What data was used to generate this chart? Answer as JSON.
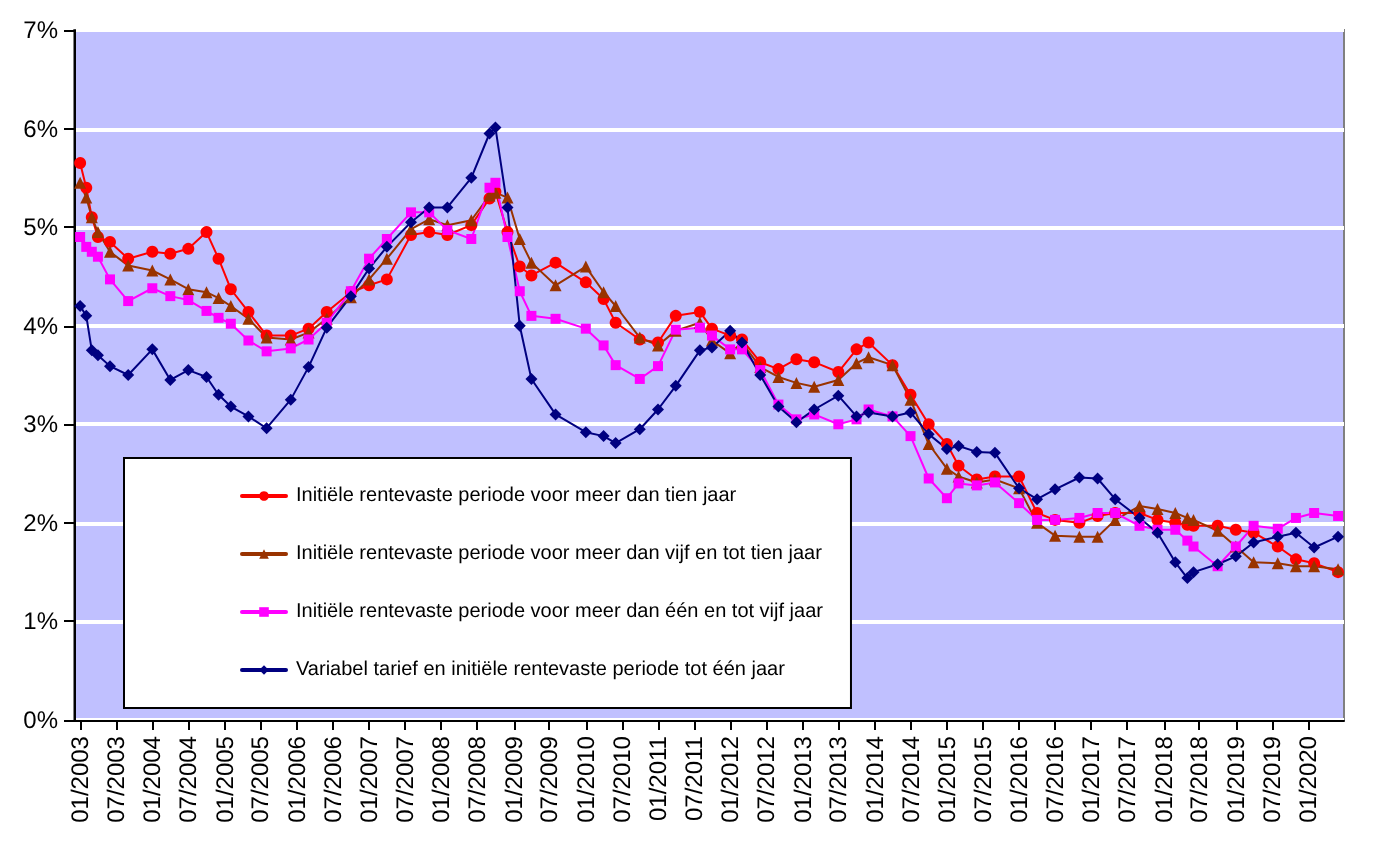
{
  "chart_data": {
    "type": "line",
    "x": [
      "2003-01",
      "2003-02",
      "2003-03",
      "2003-04",
      "2003-06",
      "2003-09",
      "2004-01",
      "2004-04",
      "2004-07",
      "2004-10",
      "2004-12",
      "2005-02",
      "2005-05",
      "2005-08",
      "2005-12",
      "2006-03",
      "2006-06",
      "2006-10",
      "2007-01",
      "2007-04",
      "2007-08",
      "2007-11",
      "2008-02",
      "2008-06",
      "2008-09",
      "2008-10",
      "2008-12",
      "2009-02",
      "2009-04",
      "2009-08",
      "2010-01",
      "2010-04",
      "2010-06",
      "2010-10",
      "2011-01",
      "2011-04",
      "2011-08",
      "2011-10",
      "2012-01",
      "2012-03",
      "2012-06",
      "2012-09",
      "2012-12",
      "2013-03",
      "2013-07",
      "2013-10",
      "2013-12",
      "2014-04",
      "2014-07",
      "2014-10",
      "2015-01",
      "2015-03",
      "2015-06",
      "2015-09",
      "2016-01",
      "2016-04",
      "2016-07",
      "2016-11",
      "2017-02",
      "2017-05",
      "2017-09",
      "2017-12",
      "2018-03",
      "2018-05",
      "2018-06",
      "2018-10",
      "2019-01",
      "2019-04",
      "2019-08",
      "2019-11",
      "2020-02",
      "2020-06"
    ],
    "series": [
      {
        "name": "Initiële rentevaste periode voor meer dan tien jaar",
        "color": "#ff0000",
        "marker": "circle",
        "values": [
          5.65,
          5.4,
          5.1,
          4.9,
          4.85,
          4.68,
          4.75,
          4.73,
          4.78,
          4.95,
          4.68,
          4.37,
          4.14,
          3.9,
          3.9,
          3.97,
          4.14,
          4.34,
          4.41,
          4.47,
          4.92,
          4.95,
          4.92,
          5.02,
          5.29,
          5.36,
          4.95,
          4.6,
          4.51,
          4.64,
          4.44,
          4.27,
          4.03,
          3.86,
          3.83,
          4.1,
          4.14,
          3.97,
          3.9,
          3.86,
          3.63,
          3.56,
          3.66,
          3.63,
          3.53,
          3.76,
          3.83,
          3.6,
          3.3,
          3.0,
          2.8,
          2.58,
          2.44,
          2.47,
          2.47,
          2.1,
          2.03,
          2.0,
          2.07,
          2.1,
          2.1,
          2.03,
          2.0,
          1.98,
          1.97,
          1.97,
          1.93,
          1.9,
          1.76,
          1.63,
          1.59,
          1.5
        ]
      },
      {
        "name": "Initiële rentevaste periode voor meer dan vijf en tot tien jaar",
        "color": "#993300",
        "marker": "triangle",
        "values": [
          5.45,
          5.3,
          5.1,
          4.95,
          4.75,
          4.61,
          4.56,
          4.47,
          4.37,
          4.34,
          4.28,
          4.2,
          4.07,
          3.88,
          3.86,
          3.93,
          4.07,
          4.29,
          4.47,
          4.68,
          4.98,
          5.08,
          5.02,
          5.07,
          5.32,
          5.35,
          5.3,
          4.88,
          4.64,
          4.41,
          4.6,
          4.34,
          4.2,
          3.88,
          3.8,
          3.95,
          4.03,
          3.85,
          3.72,
          3.83,
          3.58,
          3.48,
          3.42,
          3.38,
          3.45,
          3.62,
          3.68,
          3.6,
          3.25,
          2.8,
          2.55,
          2.47,
          2.41,
          2.44,
          2.35,
          2.0,
          1.87,
          1.86,
          1.86,
          2.03,
          2.17,
          2.14,
          2.1,
          2.05,
          2.03,
          1.92,
          1.76,
          1.6,
          1.59,
          1.56,
          1.56,
          1.53
        ]
      },
      {
        "name": "Initiële rentevaste periode voor meer dan één en tot vijf jaar",
        "color": "#ff00ff",
        "marker": "square",
        "values": [
          4.9,
          4.8,
          4.75,
          4.7,
          4.47,
          4.25,
          4.38,
          4.3,
          4.26,
          4.15,
          4.08,
          4.02,
          3.85,
          3.74,
          3.77,
          3.86,
          4.03,
          4.35,
          4.68,
          4.88,
          5.15,
          5.15,
          4.97,
          4.88,
          5.4,
          5.45,
          4.9,
          4.35,
          4.1,
          4.07,
          3.97,
          3.8,
          3.6,
          3.46,
          3.59,
          3.96,
          3.98,
          3.9,
          3.76,
          3.76,
          3.55,
          3.2,
          3.05,
          3.1,
          3.0,
          3.05,
          3.15,
          3.08,
          2.88,
          2.45,
          2.25,
          2.4,
          2.38,
          2.41,
          2.2,
          2.03,
          2.03,
          2.05,
          2.1,
          2.1,
          1.97,
          1.93,
          1.93,
          1.82,
          1.76,
          1.56,
          1.76,
          1.97,
          1.94,
          2.05,
          2.1,
          2.07
        ]
      },
      {
        "name": "Variabel tarief en initiële rentevaste periode tot één jaar",
        "color": "#000080",
        "marker": "diamond",
        "values": [
          4.2,
          4.1,
          3.75,
          3.7,
          3.59,
          3.5,
          3.76,
          3.45,
          3.55,
          3.48,
          3.3,
          3.18,
          3.08,
          2.96,
          3.25,
          3.58,
          3.98,
          4.3,
          4.58,
          4.8,
          5.05,
          5.2,
          5.2,
          5.5,
          5.95,
          6.01,
          5.2,
          4.0,
          3.46,
          3.1,
          2.92,
          2.88,
          2.81,
          2.95,
          3.15,
          3.39,
          3.75,
          3.78,
          3.95,
          3.83,
          3.5,
          3.18,
          3.02,
          3.15,
          3.29,
          3.08,
          3.12,
          3.08,
          3.12,
          2.9,
          2.75,
          2.78,
          2.72,
          2.71,
          2.35,
          2.24,
          2.34,
          2.46,
          2.45,
          2.24,
          2.05,
          1.9,
          1.6,
          1.44,
          1.5,
          1.58,
          1.66,
          1.8,
          1.86,
          1.9,
          1.75,
          1.86
        ]
      }
    ],
    "xlim": [
      "2002-12",
      "2020-07"
    ],
    "xticks": [
      {
        "value": "2003-01",
        "label": "01/2003"
      },
      {
        "value": "2003-07",
        "label": "07/2003"
      },
      {
        "value": "2004-01",
        "label": "01/2004"
      },
      {
        "value": "2004-07",
        "label": "07/2004"
      },
      {
        "value": "2005-01",
        "label": "01/2005"
      },
      {
        "value": "2005-07",
        "label": "07/2005"
      },
      {
        "value": "2006-01",
        "label": "01/2006"
      },
      {
        "value": "2006-07",
        "label": "07/2006"
      },
      {
        "value": "2007-01",
        "label": "01/2007"
      },
      {
        "value": "2007-07",
        "label": "07/2007"
      },
      {
        "value": "2008-01",
        "label": "01/2008"
      },
      {
        "value": "2008-07",
        "label": "07/2008"
      },
      {
        "value": "2009-01",
        "label": "01/2009"
      },
      {
        "value": "2009-07",
        "label": "07/2009"
      },
      {
        "value": "2010-01",
        "label": "01/2010"
      },
      {
        "value": "2010-07",
        "label": "07/2010"
      },
      {
        "value": "2011-01",
        "label": "01/2011"
      },
      {
        "value": "2011-07",
        "label": "07/2011"
      },
      {
        "value": "2012-01",
        "label": "01/2012"
      },
      {
        "value": "2012-07",
        "label": "07/2012"
      },
      {
        "value": "2013-01",
        "label": "01/2013"
      },
      {
        "value": "2013-07",
        "label": "07/2013"
      },
      {
        "value": "2014-01",
        "label": "01/2014"
      },
      {
        "value": "2014-07",
        "label": "07/2014"
      },
      {
        "value": "2015-01",
        "label": "01/2015"
      },
      {
        "value": "2015-07",
        "label": "07/2015"
      },
      {
        "value": "2016-01",
        "label": "01/2016"
      },
      {
        "value": "2016-07",
        "label": "07/2016"
      },
      {
        "value": "2017-01",
        "label": "01/2017"
      },
      {
        "value": "2017-07",
        "label": "07/2017"
      },
      {
        "value": "2018-01",
        "label": "01/2018"
      },
      {
        "value": "2018-07",
        "label": "07/2018"
      },
      {
        "value": "2019-01",
        "label": "01/2019"
      },
      {
        "value": "2019-07",
        "label": "07/2019"
      },
      {
        "value": "2020-01",
        "label": "01/2020"
      }
    ],
    "ylim": [
      0,
      7
    ],
    "yticks": [
      {
        "value": 0,
        "label": "0%"
      },
      {
        "value": 1,
        "label": "1%"
      },
      {
        "value": 2,
        "label": "2%"
      },
      {
        "value": 3,
        "label": "3%"
      },
      {
        "value": 4,
        "label": "4%"
      },
      {
        "value": 5,
        "label": "5%"
      },
      {
        "value": 6,
        "label": "6%"
      },
      {
        "value": 7,
        "label": "7%"
      }
    ],
    "grid": "y",
    "legend": "bottom left"
  }
}
